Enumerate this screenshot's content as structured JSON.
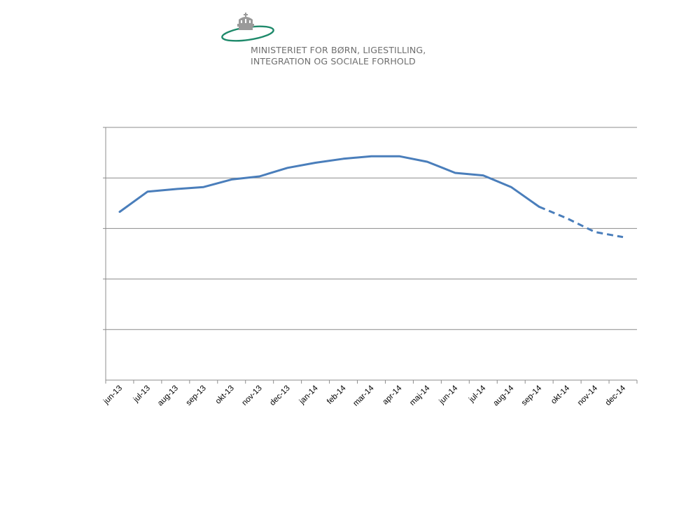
{
  "header": {
    "ministry_line1": "MINISTERIET FOR BØRN, LIGESTILLING,",
    "ministry_line2": "INTEGRATION OG SOCIALE FORHOLD",
    "logo_colors": {
      "ring": "#1f8a6b",
      "crown": "#9a9a9a"
    }
  },
  "chart_data": {
    "type": "line",
    "title": "",
    "xlabel": "",
    "ylabel": "",
    "categories": [
      "jun-13",
      "jul-13",
      "aug-13",
      "sep-13",
      "okt-13",
      "nov-13",
      "dec-13",
      "jan-14",
      "feb-14",
      "mar-14",
      "apr-14",
      "maj-14",
      "jun-14",
      "jul-14",
      "aug-14",
      "sep-14",
      "okt-14",
      "nov-14",
      "dec-14"
    ],
    "y_axis_levels": 5,
    "y_tick_labels_visible": false,
    "grid": true,
    "legend": "none",
    "series": [
      {
        "values": [
          3.33,
          3.73,
          3.78,
          3.82,
          3.97,
          4.03,
          4.2,
          4.3,
          4.38,
          4.43,
          4.43,
          4.32,
          4.1,
          4.05,
          3.82,
          3.43,
          3.2,
          2.93,
          2.83
        ],
        "solid_through_index": 15,
        "dashed_from_index": 15,
        "color": "#4a7ebb"
      }
    ]
  }
}
